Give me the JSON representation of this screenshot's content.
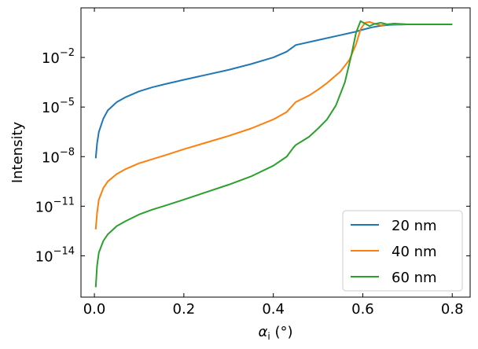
{
  "chart_data": {
    "type": "line",
    "title": "",
    "xlabel_symbol": "α",
    "xlabel_subscript": "i",
    "xlabel_unit": " (°)",
    "ylabel": "Intensity",
    "xlim": [
      -0.03,
      0.84
    ],
    "ylim_log10": [
      -16.5,
      1.0
    ],
    "y_scale": "log",
    "grid": false,
    "legend_position": "lower-right",
    "x_ticks": [
      {
        "value": 0.0,
        "label": "0.0"
      },
      {
        "value": 0.2,
        "label": "0.2"
      },
      {
        "value": 0.4,
        "label": "0.4"
      },
      {
        "value": 0.6,
        "label": "0.6"
      },
      {
        "value": 0.8,
        "label": "0.8"
      }
    ],
    "y_ticks": [
      {
        "exp": -2,
        "base": "10",
        "sup": "−2"
      },
      {
        "exp": -5,
        "base": "10",
        "sup": "−5"
      },
      {
        "exp": -8,
        "base": "10",
        "sup": "−8"
      },
      {
        "exp": -11,
        "base": "10",
        "sup": "−11"
      },
      {
        "exp": -14,
        "base": "10",
        "sup": "−14"
      }
    ],
    "series": [
      {
        "name": "20 nm",
        "color": "#1f77b4",
        "x": [
          0.003,
          0.006,
          0.01,
          0.02,
          0.03,
          0.05,
          0.07,
          0.1,
          0.13,
          0.16,
          0.2,
          0.25,
          0.3,
          0.35,
          0.4,
          0.43,
          0.445,
          0.45,
          0.5,
          0.55,
          0.58,
          0.6,
          0.62,
          0.64,
          0.66,
          0.7,
          0.75,
          0.8
        ],
        "log10_y": [
          -8.1,
          -7.2,
          -6.5,
          -5.7,
          -5.2,
          -4.7,
          -4.4,
          -4.05,
          -3.8,
          -3.6,
          -3.35,
          -3.05,
          -2.75,
          -2.4,
          -2.0,
          -1.65,
          -1.35,
          -1.25,
          -0.95,
          -0.65,
          -0.47,
          -0.32,
          -0.18,
          -0.08,
          -0.03,
          0.0,
          0.0,
          0.0
        ]
      },
      {
        "name": "40 nm",
        "color": "#ff7f0e",
        "x": [
          0.003,
          0.006,
          0.01,
          0.02,
          0.03,
          0.05,
          0.07,
          0.1,
          0.13,
          0.16,
          0.2,
          0.25,
          0.3,
          0.35,
          0.4,
          0.43,
          0.445,
          0.45,
          0.48,
          0.5,
          0.52,
          0.55,
          0.57,
          0.585,
          0.595,
          0.605,
          0.615,
          0.625,
          0.64,
          0.66,
          0.7,
          0.75,
          0.8
        ],
        "log10_y": [
          -12.4,
          -11.4,
          -10.6,
          -9.9,
          -9.5,
          -9.05,
          -8.75,
          -8.4,
          -8.15,
          -7.9,
          -7.55,
          -7.15,
          -6.75,
          -6.3,
          -5.75,
          -5.3,
          -4.85,
          -4.7,
          -4.3,
          -3.95,
          -3.55,
          -2.85,
          -2.15,
          -1.2,
          -0.3,
          0.1,
          0.15,
          0.05,
          -0.05,
          0.02,
          0.0,
          0.0,
          0.0
        ]
      },
      {
        "name": "60 nm",
        "color": "#2ca02c",
        "x": [
          0.003,
          0.006,
          0.01,
          0.02,
          0.03,
          0.05,
          0.07,
          0.1,
          0.13,
          0.16,
          0.2,
          0.25,
          0.3,
          0.35,
          0.4,
          0.43,
          0.445,
          0.45,
          0.48,
          0.5,
          0.52,
          0.54,
          0.56,
          0.575,
          0.585,
          0.595,
          0.605,
          0.615,
          0.625,
          0.64,
          0.655,
          0.67,
          0.7,
          0.75,
          0.8
        ],
        "log10_y": [
          -15.9,
          -14.6,
          -13.8,
          -13.1,
          -12.7,
          -12.2,
          -11.9,
          -11.5,
          -11.2,
          -10.95,
          -10.6,
          -10.15,
          -9.7,
          -9.2,
          -8.55,
          -8.0,
          -7.45,
          -7.3,
          -6.8,
          -6.3,
          -5.75,
          -4.9,
          -3.5,
          -1.8,
          -0.5,
          0.2,
          0.05,
          -0.1,
          0.02,
          0.1,
          0.0,
          0.05,
          0.0,
          0.0,
          0.0
        ]
      }
    ]
  }
}
